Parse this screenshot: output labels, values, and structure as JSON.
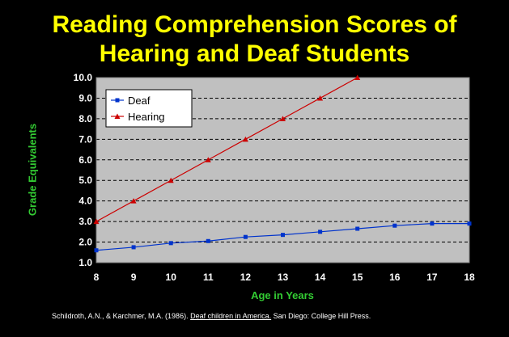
{
  "title_line1": "Reading Comprehension Scores of",
  "title_line2": "Hearing and Deaf Students",
  "citation": {
    "prefix": "Schildroth, A.N., & Karchmer, M.A. (1986).",
    "book": "Deaf children in America.",
    "suffix": "San Diego: College Hill Press."
  },
  "colors": {
    "background": "#000000",
    "title": "#ffff00",
    "axis_label": "#33cc33",
    "plot_area": "#c0c0c0",
    "deaf": "#0033cc",
    "hearing": "#cc0000"
  },
  "chart_data": {
    "type": "line",
    "xlabel": "Age in Years",
    "ylabel": "Grade Equivalents",
    "xlim": [
      8,
      18
    ],
    "ylim": [
      1.0,
      10.0
    ],
    "x_ticks": [
      "8",
      "9",
      "10",
      "11",
      "12",
      "13",
      "14",
      "15",
      "16",
      "17",
      "18"
    ],
    "y_ticks": [
      "1.0",
      "2.0",
      "3.0",
      "4.0",
      "5.0",
      "6.0",
      "7.0",
      "8.0",
      "9.0",
      "10.0"
    ],
    "grid": "horizontal dashed",
    "legend_position": "top-left",
    "series": [
      {
        "name": "Deaf",
        "marker": "square",
        "color": "#0033cc",
        "x": [
          8,
          9,
          10,
          11,
          12,
          13,
          14,
          15,
          16,
          17,
          18
        ],
        "y": [
          1.6,
          1.75,
          1.95,
          2.05,
          2.25,
          2.35,
          2.5,
          2.65,
          2.8,
          2.9,
          2.9
        ]
      },
      {
        "name": "Hearing",
        "marker": "triangle",
        "color": "#cc0000",
        "x": [
          8,
          9,
          10,
          11,
          12,
          13,
          14,
          15
        ],
        "y": [
          3.0,
          4.0,
          5.0,
          6.0,
          7.0,
          8.0,
          9.0,
          10.0
        ]
      }
    ]
  }
}
